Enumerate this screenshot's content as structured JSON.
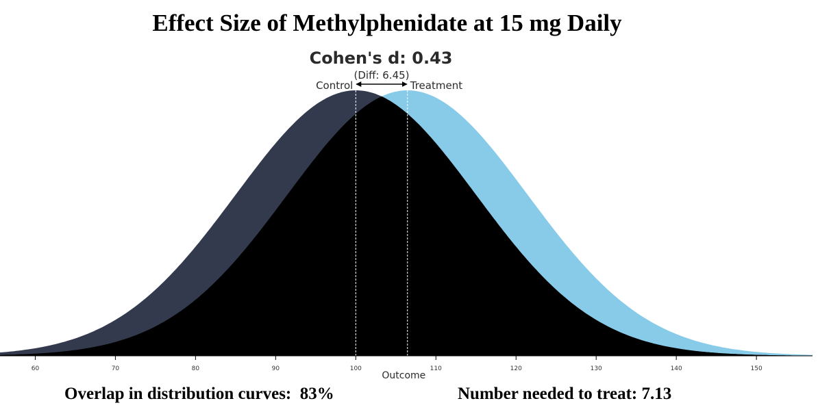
{
  "title": "Effect Size of Methylphenidate at 15 mg Daily",
  "colors": {
    "control": "#333a4d",
    "treatment": "#87cbe8",
    "overlap": "#000000",
    "axis": "#000000",
    "mean_line": "#ffffff",
    "text_dark": "#2b2b2b"
  },
  "chart_data": {
    "type": "area",
    "title": "Cohen's d: 0.43",
    "subtitle": "(Diff: 6.45)",
    "xlabel": "Outcome",
    "ylabel": "",
    "xlim": [
      55.6,
      157
    ],
    "xticks": [
      60,
      70,
      80,
      90,
      100,
      110,
      120,
      130,
      140,
      150
    ],
    "series": [
      {
        "name": "Control",
        "mean": 100,
        "sd": 15
      },
      {
        "name": "Treatment",
        "mean": 106.45,
        "sd": 15
      }
    ],
    "cohens_d": 0.43,
    "mean_difference": 6.45
  },
  "stats": {
    "overlap_label": "Overlap in distribution curves:  83%",
    "nnt_label": "Number needed to treat: 7.13"
  }
}
